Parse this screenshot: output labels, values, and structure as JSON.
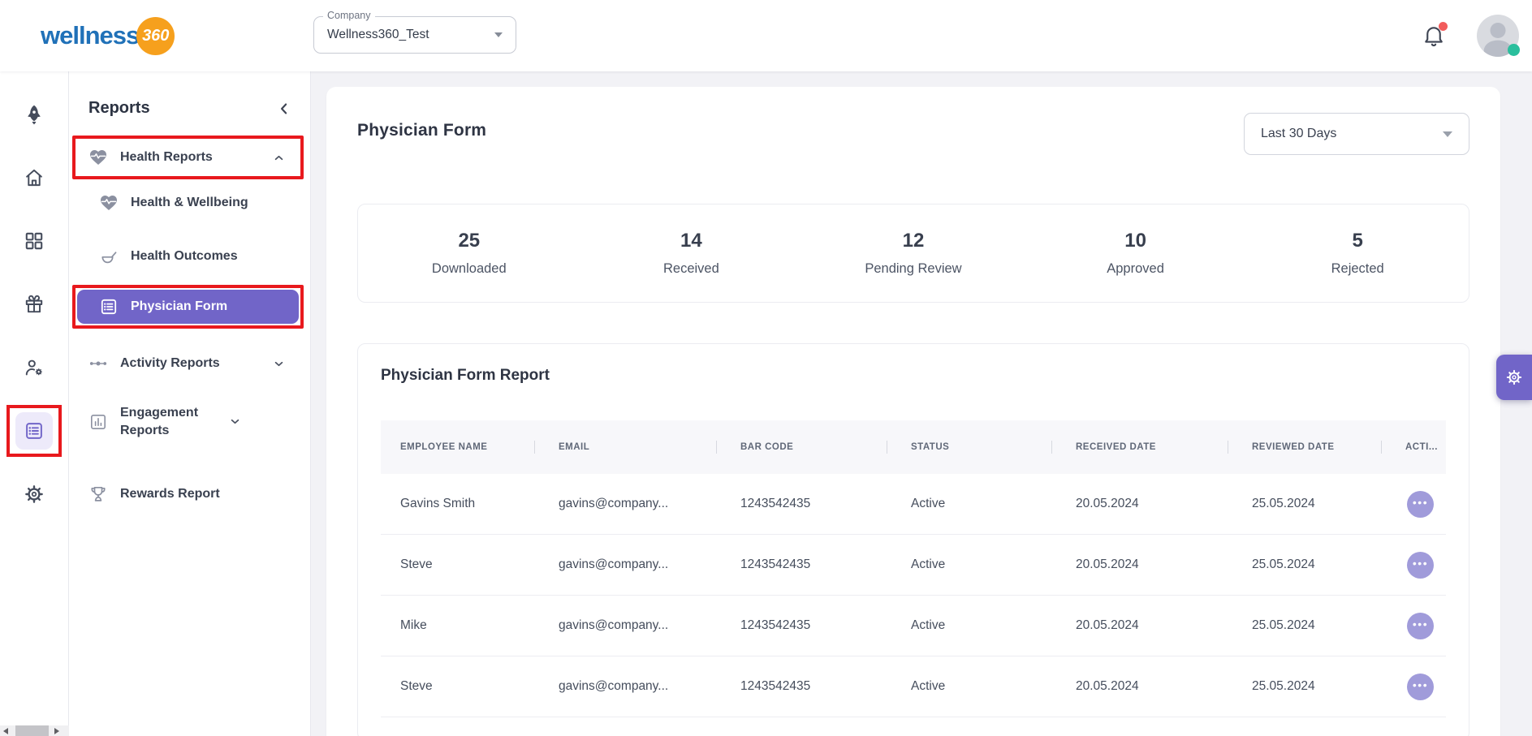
{
  "brand": {
    "logo_text": "wellness",
    "logo_badge": "360"
  },
  "header": {
    "company_label": "Company",
    "company_value": "Wellness360_Test"
  },
  "rail": {
    "items": [
      {
        "name": "launch",
        "icon": "rocket"
      },
      {
        "name": "home",
        "icon": "home"
      },
      {
        "name": "apps",
        "icon": "grid"
      },
      {
        "name": "rewards",
        "icon": "gift"
      },
      {
        "name": "user-management",
        "icon": "user-gear"
      },
      {
        "name": "reports",
        "icon": "report-list",
        "active": true,
        "annotated": true
      },
      {
        "name": "settings",
        "icon": "gear"
      }
    ]
  },
  "sidebar": {
    "title": "Reports",
    "items": [
      {
        "label": "Health Reports",
        "icon": "heart-pulse",
        "level": 0,
        "chevron": "up",
        "annotated": true
      },
      {
        "label": "Health & Wellbeing",
        "icon": "heart-pulse",
        "level": 1
      },
      {
        "label": "Health Outcomes",
        "icon": "bowl",
        "level": 1
      },
      {
        "label": "Physician Form",
        "icon": "form-list",
        "level": 1,
        "active": true,
        "annotated": true
      },
      {
        "label": "Activity Reports",
        "icon": "beads",
        "level": 0,
        "chevron": "down"
      },
      {
        "label": "Engagement Reports",
        "icon": "bar-chart",
        "level": 0,
        "chevron": "down"
      },
      {
        "label": "Rewards Report",
        "icon": "trophy",
        "level": 0
      }
    ]
  },
  "main": {
    "title": "Physician Form",
    "date_filter": "Last 30 Days",
    "stats": [
      {
        "value": "25",
        "label": "Downloaded"
      },
      {
        "value": "14",
        "label": "Received"
      },
      {
        "value": "12",
        "label": "Pending Review"
      },
      {
        "value": "10",
        "label": "Approved"
      },
      {
        "value": "5",
        "label": "Rejected"
      }
    ],
    "report": {
      "title": "Physician Form Report",
      "columns": [
        "EMPLOYEE NAME",
        "EMAIL",
        "BAR CODE",
        "STATUS",
        "RECEIVED DATE",
        "REVIEWED DATE",
        "ACTI..."
      ],
      "rows": [
        {
          "employee_name": "Gavins Smith",
          "email": "gavins@company...",
          "bar_code": "1243542435",
          "status": "Active",
          "received_date": "20.05.2024",
          "reviewed_date": "25.05.2024"
        },
        {
          "employee_name": "Steve",
          "email": "gavins@company...",
          "bar_code": "1243542435",
          "status": "Active",
          "received_date": "20.05.2024",
          "reviewed_date": "25.05.2024"
        },
        {
          "employee_name": "Mike",
          "email": "gavins@company...",
          "bar_code": "1243542435",
          "status": "Active",
          "received_date": "20.05.2024",
          "reviewed_date": "25.05.2024"
        },
        {
          "employee_name": "Steve",
          "email": "gavins@company...",
          "bar_code": "1243542435",
          "status": "Active",
          "received_date": "20.05.2024",
          "reviewed_date": "25.05.2024"
        }
      ]
    }
  },
  "colors": {
    "accent": "#7165c8",
    "annotation": "#e8191d",
    "logo_blue": "#2071b8",
    "logo_orange": "#f6a01d",
    "alert": "#f25c5c",
    "online": "#2abf9d",
    "dots": "#a09bda"
  }
}
